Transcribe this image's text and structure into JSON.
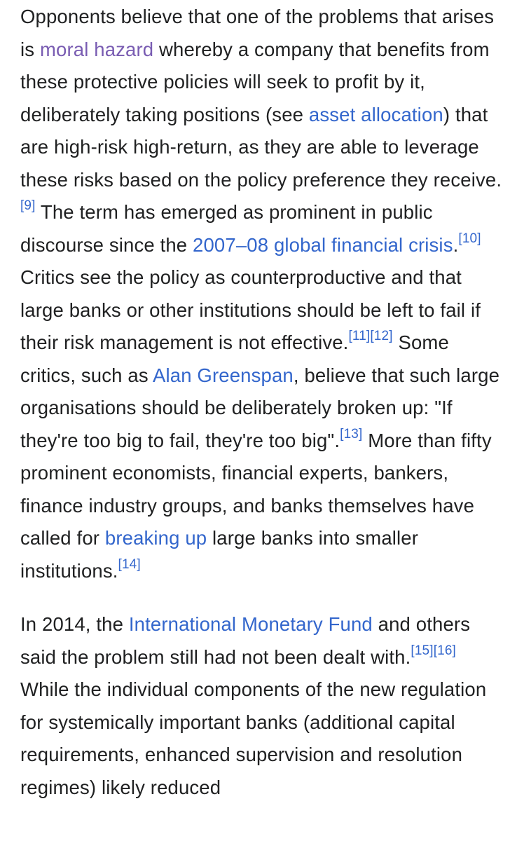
{
  "colors": {
    "text": "#202122",
    "link": "#3366cc",
    "visited_link": "#795cb2",
    "background": "#ffffff"
  },
  "paragraph1": {
    "t1": "Opponents believe that one of the problems that arises is ",
    "link_moral_hazard": "moral hazard",
    "t2": " whereby a company that benefits from these protective policies will seek to profit by it, deliberately taking positions (see ",
    "link_asset_allocation": "asset allocation",
    "t3": ") that are high-risk high-return, as they are able to leverage these risks based on the policy preference they receive.",
    "ref9": "[9]",
    "t4": " The term has emerged as prominent in public discourse since the ",
    "link_crisis": "2007–08 global financial crisis",
    "t5": ".",
    "ref10": "[10]",
    "t6": " Critics see the policy as counterproductive and that large banks or other institutions should be left to fail if their risk management is not effective.",
    "ref11": "[11]",
    "ref12": "[12]",
    "t7": " Some critics, such as ",
    "link_greenspan": "Alan Greenspan",
    "t8": ", believe that such large organisations should be deliberately broken up: \"If they're too big to fail, they're too big\".",
    "ref13": "[13]",
    "t9": " More than fifty prominent economists, financial experts, bankers, finance industry groups, and banks themselves have called for ",
    "link_breaking_up": "breaking up",
    "t10": " large banks into smaller institutions.",
    "ref14": "[14]"
  },
  "paragraph2": {
    "t1": "In 2014, the ",
    "link_imf": "International Monetary Fund",
    "t2": " and others said the problem still had not been dealt with.",
    "ref15": "[15]",
    "ref16": "[16]",
    "t3": " While the individual components of the new regulation for systemically important banks (additional capital requirements, enhanced supervision and resolution regimes) likely reduced"
  }
}
